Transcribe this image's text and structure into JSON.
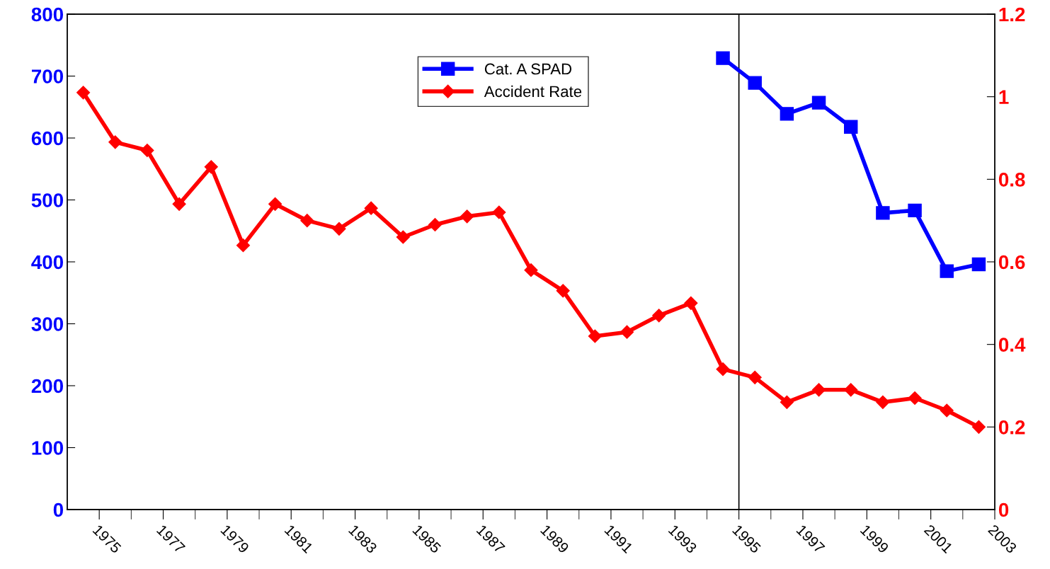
{
  "chart_data": {
    "type": "line",
    "x": [
      1974.5,
      1975.5,
      1976.5,
      1977.5,
      1978.5,
      1979.5,
      1980.5,
      1981.5,
      1982.5,
      1983.5,
      1984.5,
      1985.5,
      1986.5,
      1987.5,
      1988.5,
      1989.5,
      1990.5,
      1991.5,
      1992.5,
      1993.5,
      1994.5,
      1995.5,
      1996.5,
      1997.5,
      1998.5,
      1999.5,
      2000.5,
      2001.5,
      2002.5
    ],
    "series": [
      {
        "name": "Cat. A SPAD",
        "color": "#0000ff",
        "marker": "square",
        "axis": "y",
        "x": [
          1994.5,
          1995.5,
          1996.5,
          1997.5,
          1998.5,
          1999.5,
          2000.5,
          2001.5,
          2002.5
        ],
        "values": [
          729,
          689,
          639,
          657,
          618,
          479,
          483,
          385,
          396
        ]
      },
      {
        "name": "Accident Rate",
        "color": "#ff0000",
        "marker": "diamond",
        "axis": "y2",
        "values": [
          1.01,
          0.89,
          0.87,
          0.74,
          0.83,
          0.64,
          0.74,
          0.7,
          0.68,
          0.73,
          0.66,
          0.69,
          0.71,
          0.72,
          0.58,
          0.53,
          0.42,
          0.43,
          0.47,
          0.5,
          0.34,
          0.32,
          0.26,
          0.29,
          0.29,
          0.26,
          0.27,
          0.24,
          0.2
        ]
      }
    ],
    "xlim": [
      1974,
      2003
    ],
    "xticks": [
      1975,
      {
        "value": 1976,
        "label": null
      },
      1977,
      {
        "value": 1978,
        "label": null
      },
      1979,
      {
        "value": 1980,
        "label": null
      },
      1981,
      {
        "value": 1982,
        "label": null
      },
      1983,
      {
        "value": 1984,
        "label": null
      },
      1985,
      {
        "value": 1986,
        "label": null
      },
      1987,
      {
        "value": 1988,
        "label": null
      },
      1989,
      {
        "value": 1990,
        "label": null
      },
      1991,
      {
        "value": 1992,
        "label": null
      },
      1993,
      {
        "value": 1994,
        "label": null
      },
      1995,
      {
        "value": 1996,
        "label": null
      },
      1997,
      {
        "value": 1998,
        "label": null
      },
      1999,
      {
        "value": 2000,
        "label": null
      },
      2001,
      {
        "value": 2002,
        "label": null
      },
      2003
    ],
    "ylim": [
      0,
      800
    ],
    "yticks": [
      0,
      100,
      200,
      300,
      400,
      500,
      600,
      700,
      800
    ],
    "y2lim": [
      0,
      1.2
    ],
    "y2ticks": [
      0,
      0.2,
      0.4,
      0.6,
      0.8,
      1,
      1.2
    ],
    "ref_lines": [
      {
        "axis": "x",
        "value": 1995,
        "color": "#000000"
      }
    ],
    "grid": false,
    "legend": "top center",
    "line_style": "solid"
  }
}
